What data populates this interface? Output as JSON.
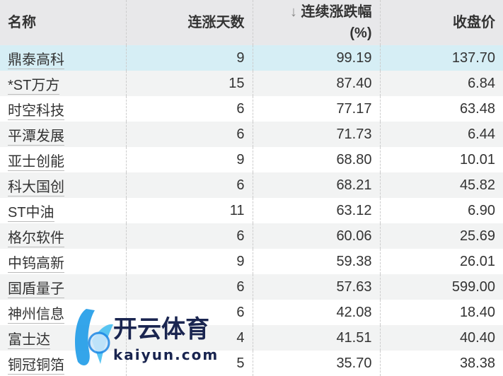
{
  "headers": {
    "name": "名称",
    "days": "连涨天数",
    "arrow": "↓",
    "pct": "连续涨跌幅",
    "pct_unit": "(%)",
    "price": "收盘价"
  },
  "rows": [
    {
      "name": "鼎泰高科",
      "days": "9",
      "pct": "99.19",
      "price": "137.70",
      "highlighted": true
    },
    {
      "name": "*ST万方",
      "days": "15",
      "pct": "87.40",
      "price": "6.84"
    },
    {
      "name": "时空科技",
      "days": "6",
      "pct": "77.17",
      "price": "63.48"
    },
    {
      "name": "平潭发展",
      "days": "6",
      "pct": "71.73",
      "price": "6.44"
    },
    {
      "name": "亚士创能",
      "days": "9",
      "pct": "68.80",
      "price": "10.01"
    },
    {
      "name": "科大国创",
      "days": "6",
      "pct": "68.21",
      "price": "45.82"
    },
    {
      "name": "ST中油",
      "days": "11",
      "pct": "63.12",
      "price": "6.90"
    },
    {
      "name": "格尔软件",
      "days": "6",
      "pct": "60.06",
      "price": "25.69"
    },
    {
      "name": "中钨高新",
      "days": "9",
      "pct": "59.38",
      "price": "26.01"
    },
    {
      "name": "国盾量子",
      "days": "6",
      "pct": "57.63",
      "price": "599.00"
    },
    {
      "name": "神州信息",
      "days": "6",
      "pct": "42.08",
      "price": "18.40"
    },
    {
      "name": "富士达",
      "days": "4",
      "pct": "41.51",
      "price": "40.40"
    },
    {
      "name": "铜冠铜箔",
      "days": "5",
      "pct": "35.70",
      "price": "38.38"
    }
  ],
  "watermark": {
    "title": "开云体育",
    "url": "kaiyun.com"
  },
  "colors": {
    "highlight": "#d6eef5",
    "header": "#e8e8ea",
    "watermark_text": "#1a2550",
    "watermark_logo": "#1e9be8"
  }
}
